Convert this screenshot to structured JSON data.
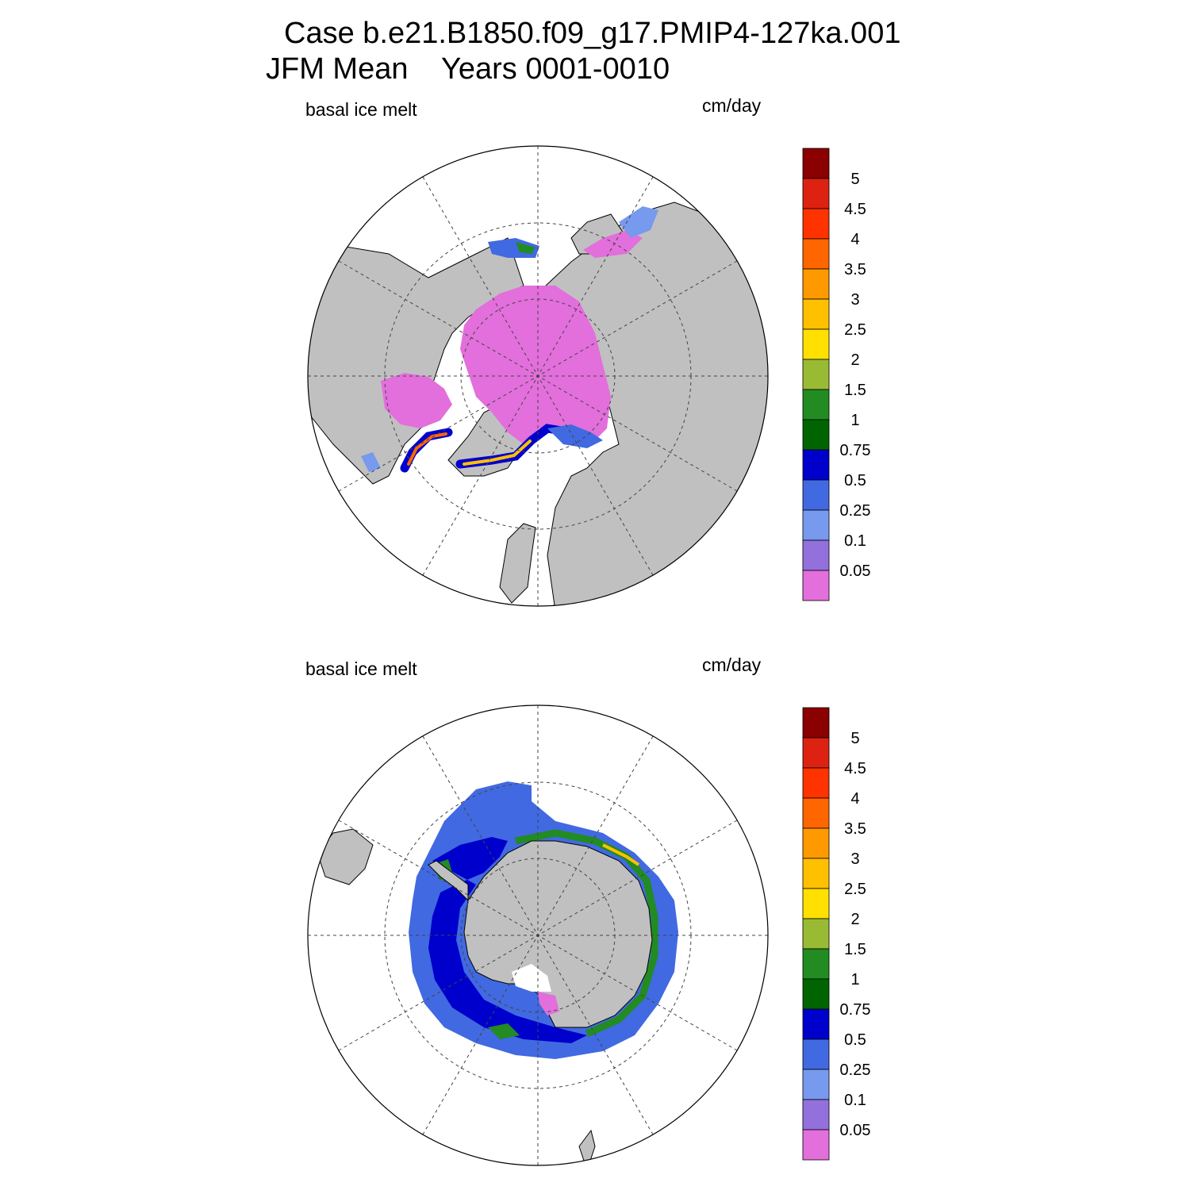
{
  "title": {
    "line1": "Case b.e21.B1850.f09_g17.PMIP4-127ka.001",
    "line2": "JFM Mean    Years 0001-0010"
  },
  "panels": [
    {
      "name": "north",
      "left_label": "basal ice melt",
      "right_label": "cm/day"
    },
    {
      "name": "south",
      "left_label": "basal ice melt",
      "right_label": "cm/day"
    }
  ],
  "colorbar": {
    "labels": [
      "5",
      "4.5",
      "4",
      "3.5",
      "3",
      "2.5",
      "2",
      "1.5",
      "1",
      "0.75",
      "0.5",
      "0.25",
      "0.1",
      "0.05"
    ],
    "colors": [
      "#8B0000",
      "#DD2211",
      "#FF3300",
      "#FF6600",
      "#FF9900",
      "#FFC000",
      "#FFE000",
      "#99BB33",
      "#228B22",
      "#006400",
      "#0000CC",
      "#4169E1",
      "#7799EE",
      "#9370DB",
      "#E26FDB"
    ]
  },
  "colors": {
    "land": "#C0C0C0",
    "ocean": "#FFFFFF"
  }
}
